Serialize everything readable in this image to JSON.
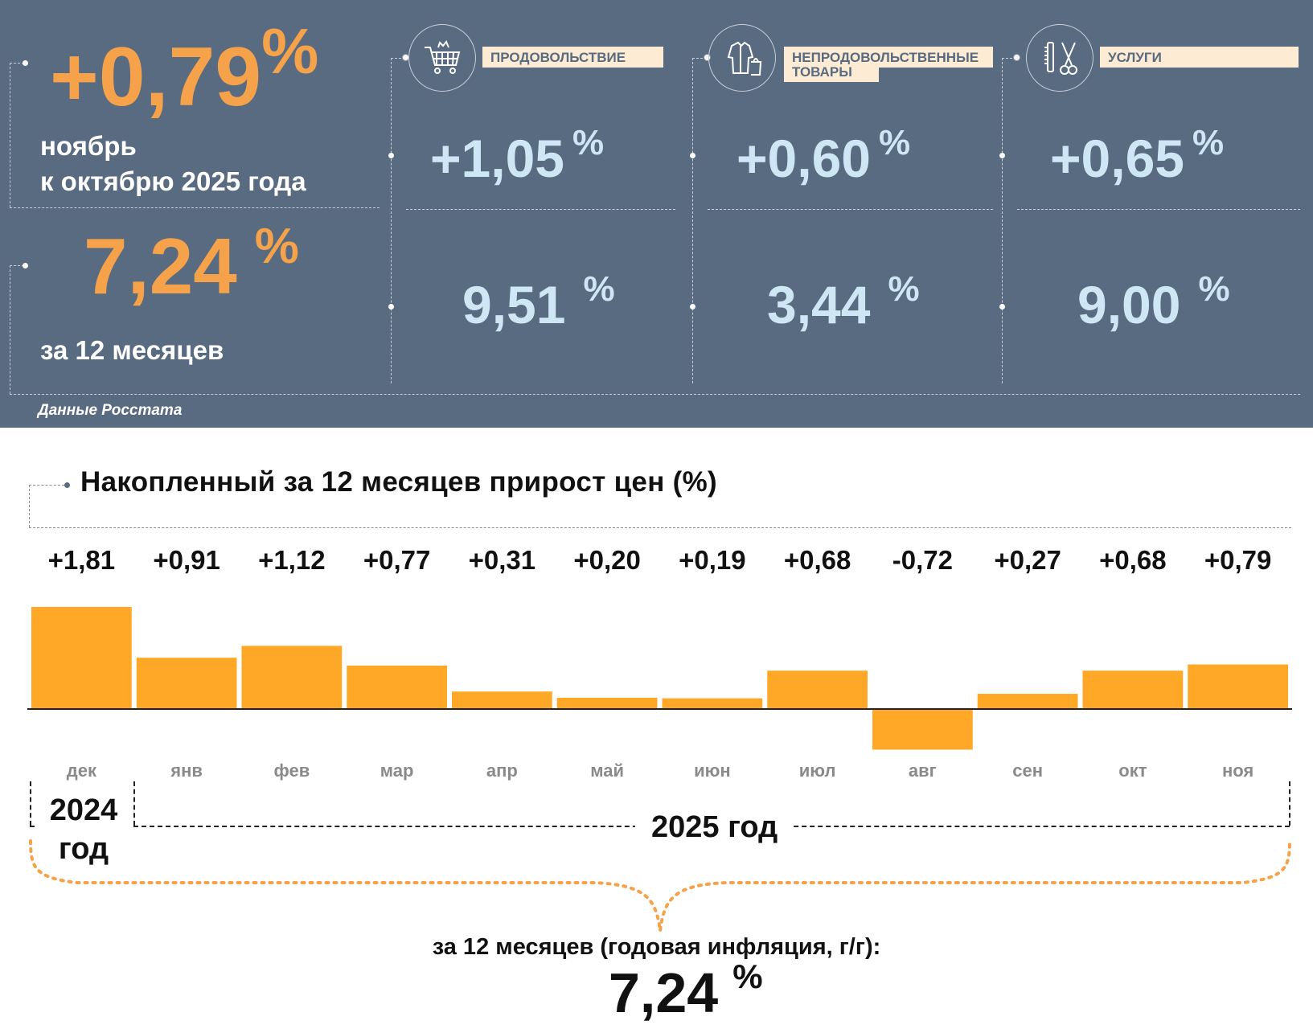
{
  "header": {
    "monthly": {
      "value": "+0,79",
      "unit": "%",
      "caption_line1": "ноябрь",
      "caption_line2": "к октябрю 2025 года"
    },
    "annual": {
      "value": "7,24",
      "unit": "%",
      "caption": "за 12 месяцев"
    },
    "source": "Данные Росстата",
    "categories": [
      {
        "icon": "shopping-cart-icon",
        "label_line1": "ПРОДОВОЛЬСТВИЕ",
        "label_line2": "",
        "monthly": "+1,05",
        "annual": "9,51",
        "unit": "%"
      },
      {
        "icon": "clothing-bag-icon",
        "label_line1": "НЕПРОДОВОЛЬСТВЕННЫЕ",
        "label_line2": "ТОВАРЫ",
        "monthly": "+0,60",
        "annual": "3,44",
        "unit": "%"
      },
      {
        "icon": "comb-scissors-icon",
        "label_line1": "УСЛУГИ",
        "label_line2": "",
        "monthly": "+0,65",
        "annual": "9,00",
        "unit": "%"
      }
    ]
  },
  "colors": {
    "panel": "#586b80",
    "accent_orange": "#f5a24a",
    "bar": "#ffa726",
    "value_blue": "#cfe6f4",
    "label_bg": "#fdebd3"
  },
  "chart_data": {
    "type": "bar",
    "title": "Накопленный за 12 месяцев прирост цен (%)",
    "categories": [
      "дек",
      "янв",
      "фев",
      "мар",
      "апр",
      "май",
      "июн",
      "июл",
      "авг",
      "сен",
      "окт",
      "ноя"
    ],
    "values": [
      1.81,
      0.91,
      1.12,
      0.77,
      0.31,
      0.2,
      0.19,
      0.68,
      -0.72,
      0.27,
      0.68,
      0.79
    ],
    "value_labels": [
      "+1,81",
      "+0,91",
      "+1,12",
      "+0,77",
      "+0,31",
      "+0,20",
      "+0,19",
      "+0,68",
      "-0,72",
      "+0,27",
      "+0,68",
      "+0,79"
    ],
    "ylim": [
      -0.72,
      1.81
    ],
    "year_2024_line1": "2024",
    "year_2024_line2": "год",
    "year_2025": "2025 год",
    "summary_caption": "за 12 месяцев (годовая инфляция, г/г):",
    "summary_value": "7,24",
    "summary_unit": "%"
  }
}
